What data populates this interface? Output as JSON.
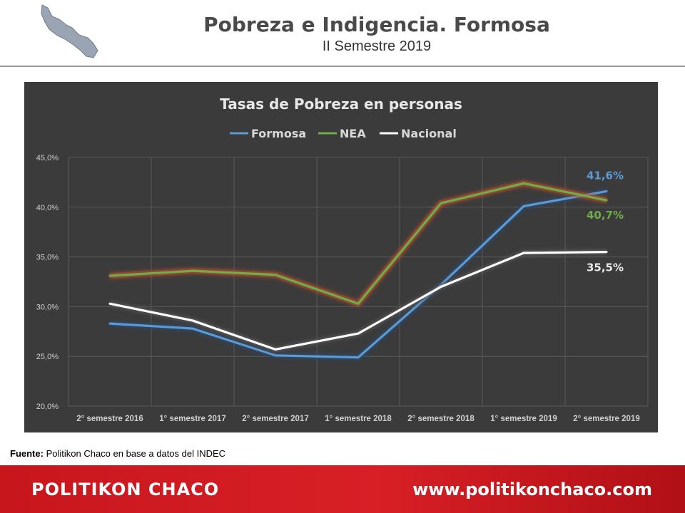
{
  "header": {
    "title": "Pobreza e Indigencia. Formosa",
    "subtitle": "II Semestre 2019",
    "logo_icon": "formosa-map-icon"
  },
  "source": {
    "label": "Fuente:",
    "text": "Politikon Chaco en base a datos del INDEC"
  },
  "footer": {
    "brand": "POLITIKON CHACO",
    "url": "www.politikonchaco.com"
  },
  "chart_data": {
    "type": "line",
    "title": "Tasas de Pobreza en personas",
    "categories": [
      "2° semestre 2016",
      "1° semestre 2017",
      "2° semestre 2017",
      "1° semestre 2018",
      "2° semestre 2018",
      "1° semestre 2019",
      "2° semestre 2019"
    ],
    "series": [
      {
        "name": "Formosa",
        "color": "#5b9bd5",
        "values": [
          28.3,
          27.8,
          25.1,
          24.9,
          32.2,
          40.1,
          41.6
        ],
        "end_label": "41,6%"
      },
      {
        "name": "NEA",
        "color": "#70ad47",
        "values": [
          33.1,
          33.6,
          33.2,
          30.3,
          40.4,
          42.4,
          40.7
        ],
        "end_label": "40,7%"
      },
      {
        "name": "Nacional",
        "color": "#ffffff",
        "values": [
          30.3,
          28.6,
          25.7,
          27.3,
          32.0,
          35.4,
          35.5
        ],
        "end_label": "35,5%"
      }
    ],
    "ylim": [
      20,
      45
    ],
    "yticks": [
      "20,0%",
      "25,0%",
      "30,0%",
      "35,0%",
      "40,0%",
      "45,0%"
    ],
    "grid": true,
    "legend": "top-center",
    "background": "#3b3b3b"
  }
}
